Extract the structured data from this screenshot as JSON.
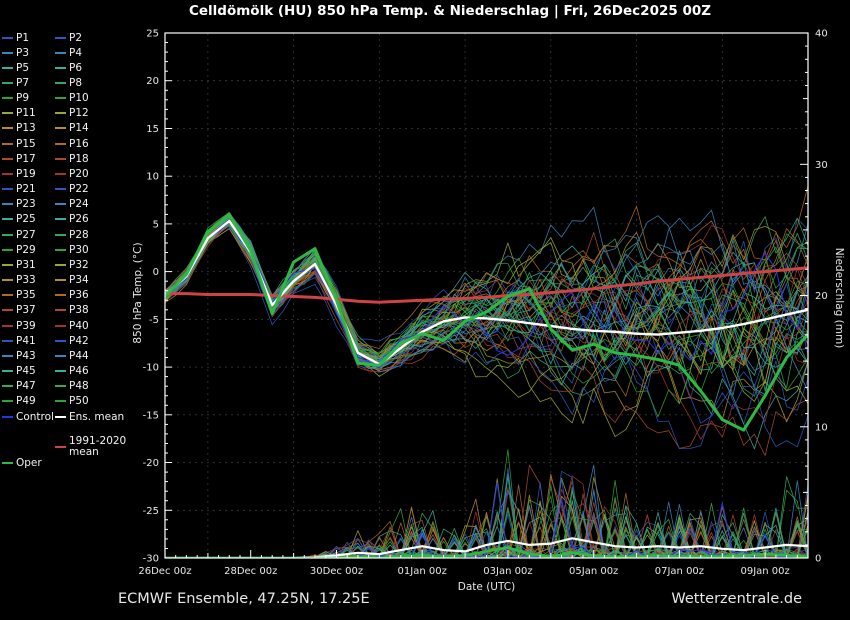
{
  "title": "Celldömölk  (HU)  850 hPa Temp. & Niederschlag | Fri, 26Dec2025 00Z",
  "footer": {
    "left": "ECMWF Ensemble, 47.25N, 17.25E",
    "right": "Wetterzentrale.de"
  },
  "legend": {
    "members": [
      "P1",
      "P2",
      "P3",
      "P4",
      "P5",
      "P6",
      "P7",
      "P8",
      "P9",
      "P10",
      "P11",
      "P12",
      "P13",
      "P14",
      "P15",
      "P16",
      "P17",
      "P18",
      "P19",
      "P20",
      "P21",
      "P22",
      "P23",
      "P24",
      "P25",
      "P26",
      "P27",
      "P28",
      "P29",
      "P30",
      "P31",
      "P32",
      "P33",
      "P34",
      "P35",
      "P36",
      "P37",
      "P38",
      "P39",
      "P40",
      "P41",
      "P42",
      "P43",
      "P44",
      "P45",
      "P46",
      "P47",
      "P48",
      "P49",
      "P50"
    ],
    "control_label": "Control",
    "ens_mean_label": "Ens. mean",
    "clim_label": "1991-2020 mean",
    "oper_label": "Oper"
  },
  "colors": {
    "background": "#000000",
    "text": "#e8e8e8",
    "axis": "#ffffff",
    "grid": "#6a6a6a",
    "member_cycle": [
      "#2e55c0",
      "#3b85bb",
      "#37ae9e",
      "#36a75e",
      "#2fa335",
      "#99a733",
      "#b2902b",
      "#ae6a29",
      "#aa4b29",
      "#a33434"
    ],
    "control": "#2636dd",
    "ens_mean": "#ffffff",
    "clim_mean": "#cf4347",
    "oper": "#2db944"
  },
  "chart_data": {
    "type": "line",
    "title": "Celldömölk  (HU)  850 hPa Temp. & Niederschlag | Fri, 26Dec2025 00Z",
    "x_axis": {
      "label": "Date (UTC)",
      "start_days": 0,
      "end_days": 15,
      "step_days": 0.5,
      "major_tick_days": [
        0,
        2,
        4,
        6,
        8,
        10,
        12,
        14
      ],
      "tick_labels": [
        "26Dec 00z",
        "28Dec 00z",
        "30Dec 00z",
        "01Jan 00z",
        "03Jan 00z",
        "05Jan 00z",
        "07Jan 00z",
        "09Jan 00z"
      ]
    },
    "y_left": {
      "label": "850 hPa Temp. (°C)",
      "range": [
        -30,
        25
      ],
      "tick_values": [
        25,
        20,
        15,
        10,
        5,
        0,
        -5,
        -10,
        -15,
        -20,
        -25,
        -30
      ],
      "tick_labels": [
        "25",
        "20",
        "15",
        "10",
        "5",
        "0",
        "-5",
        "-10",
        "-15",
        "-20",
        "-25",
        "-30"
      ]
    },
    "y_right": {
      "label": "Niederschlag (mm)",
      "range": [
        0,
        40
      ],
      "tick_values": [
        40,
        30,
        20,
        10,
        0
      ],
      "tick_labels": [
        "40",
        "30",
        "20",
        "10",
        "0"
      ]
    },
    "grid": {
      "horizontal_every_c": 5,
      "vertical_dashed_days": [
        1,
        3,
        5,
        7,
        9,
        11,
        13
      ]
    },
    "legend_position": "left",
    "series": [
      {
        "name": "Ens. mean",
        "axis": "temp",
        "color_key": "ens_mean",
        "values": [
          -2.5,
          -0.5,
          3.5,
          5.3,
          2.0,
          -3.5,
          -1.0,
          0.8,
          -3.5,
          -8.5,
          -9.7,
          -8.0,
          -6.3,
          -5.2,
          -4.8,
          -4.9,
          -5.1,
          -5.4,
          -5.7,
          -6.0,
          -6.2,
          -6.3,
          -6.5,
          -6.6,
          -6.4,
          -6.2,
          -5.9,
          -5.5,
          -5.0,
          -4.5,
          -4.0
        ]
      },
      {
        "name": "1991-2020 mean",
        "axis": "temp",
        "color_key": "clim_mean",
        "values": [
          -2.3,
          -2.3,
          -2.4,
          -2.4,
          -2.4,
          -2.5,
          -2.6,
          -2.7,
          -2.9,
          -3.1,
          -3.2,
          -3.1,
          -3.0,
          -2.9,
          -2.8,
          -2.7,
          -2.5,
          -2.4,
          -2.2,
          -2.0,
          -1.8,
          -1.5,
          -1.3,
          -1.0,
          -0.8,
          -0.6,
          -0.4,
          -0.2,
          0.0,
          0.2,
          0.4
        ]
      },
      {
        "name": "Oper",
        "axis": "temp",
        "color_key": "oper",
        "values": [
          -2.6,
          -0.3,
          4.2,
          6.0,
          2.2,
          -4.4,
          1.0,
          2.4,
          -3.0,
          -9.6,
          -9.8,
          -7.5,
          -6.5,
          -7.2,
          -5.2,
          -4.2,
          -2.6,
          -1.8,
          -6.0,
          -8.2,
          -7.6,
          -8.5,
          -8.8,
          -9.2,
          -9.8,
          -12.5,
          -15.5,
          -16.6,
          -13.0,
          -9.0,
          -6.6
        ]
      },
      {
        "name": "Ens. mean precip",
        "axis": "precip",
        "color_key": "ens_mean",
        "values": [
          0,
          0,
          0,
          0,
          0,
          0,
          0,
          0.05,
          0.2,
          0.4,
          0.3,
          0.6,
          0.9,
          0.6,
          0.5,
          1.0,
          1.3,
          1.0,
          1.1,
          1.5,
          1.2,
          0.9,
          0.8,
          0.9,
          0.8,
          0.9,
          0.7,
          0.6,
          0.8,
          1.0,
          0.9
        ]
      },
      {
        "name": "Oper precip",
        "axis": "precip",
        "color_key": "oper",
        "values": [
          0,
          0,
          0,
          0,
          0,
          0,
          0,
          0,
          0,
          0.1,
          0,
          0.1,
          0.2,
          0.1,
          0.2,
          0.5,
          0.8,
          0.3,
          0.1,
          0.4,
          0.2,
          0.1,
          0.1,
          0.2,
          0.1,
          0.1,
          0.1,
          0.2,
          0.3,
          0.2,
          0.1
        ]
      }
    ],
    "ensemble": {
      "member_count": 50,
      "temp_envelope_min": [
        -3.6,
        -1.8,
        2.2,
        4.2,
        0.5,
        -5.5,
        -2.8,
        -1.2,
        -5.5,
        -11.0,
        -12.0,
        -10.5,
        -9.5,
        -9.0,
        -10.5,
        -11.5,
        -12.0,
        -12.5,
        -13.0,
        -13.5,
        -14.5,
        -15.0,
        -15.5,
        -16.0,
        -16.5,
        -17.0,
        -17.5,
        -18.0,
        -19.0,
        -18.5,
        -18.0
      ],
      "temp_envelope_max": [
        -1.6,
        0.8,
        4.8,
        6.8,
        3.8,
        -1.5,
        1.2,
        3.6,
        -1.0,
        -6.5,
        -7.2,
        -5.0,
        -2.5,
        -0.5,
        2.0,
        3.0,
        4.5,
        5.0,
        6.0,
        6.5,
        7.0,
        7.5,
        8.0,
        8.5,
        9.5,
        9.0,
        9.0,
        9.5,
        10.0,
        9.5,
        10.0
      ],
      "precip_envelope_max": [
        0,
        0,
        0,
        0,
        0,
        0,
        0,
        0.3,
        1.2,
        2.6,
        2.0,
        4.5,
        5.5,
        4.0,
        3.5,
        6.0,
        9.5,
        7.5,
        8.0,
        10.5,
        8.5,
        6.5,
        5.0,
        6.0,
        5.5,
        6.0,
        5.0,
        4.5,
        5.5,
        7.0,
        6.5
      ]
    }
  }
}
